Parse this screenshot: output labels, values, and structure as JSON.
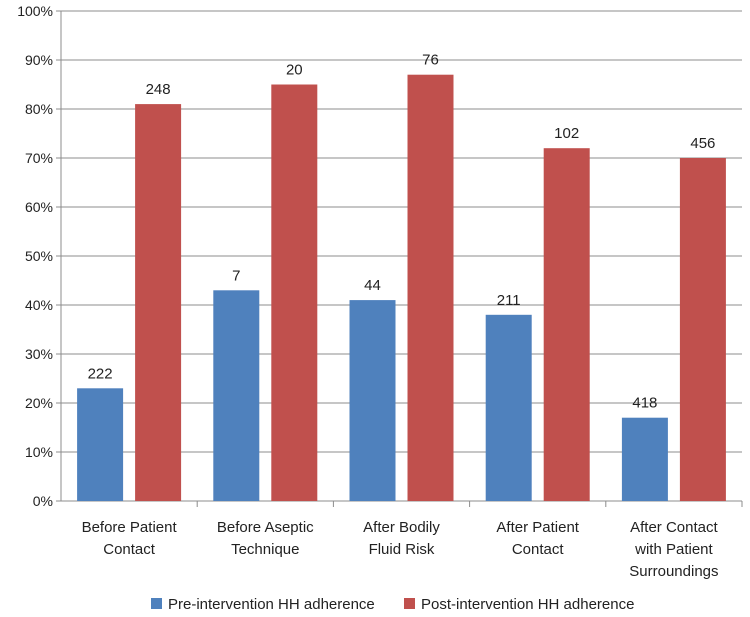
{
  "chart_data": {
    "type": "bar",
    "title": "",
    "xlabel": "",
    "ylabel": "",
    "ylim": [
      0,
      100
    ],
    "yticks": [
      "0%",
      "10%",
      "20%",
      "30%",
      "40%",
      "50%",
      "60%",
      "70%",
      "80%",
      "90%",
      "100%"
    ],
    "grid": true,
    "legend_position": "bottom",
    "categories": [
      [
        "Before Patient",
        "Contact"
      ],
      [
        "Before Aseptic",
        "Technique"
      ],
      [
        "After Bodily",
        "Fluid Risk"
      ],
      [
        "After Patient",
        "Contact"
      ],
      [
        "After Contact",
        "with Patient",
        "Surroundings"
      ]
    ],
    "series": [
      {
        "name": "Pre-intervention HH adherence",
        "color": "#4f81bd",
        "values": [
          23,
          43,
          41,
          38,
          17
        ],
        "labels": [
          "222",
          "7",
          "44",
          "211",
          "418"
        ]
      },
      {
        "name": "Post-intervention HH adherence",
        "color": "#c0504d",
        "values": [
          81,
          85,
          87,
          72,
          70
        ],
        "labels": [
          "248",
          "20",
          "76",
          "102",
          "456"
        ]
      }
    ]
  }
}
